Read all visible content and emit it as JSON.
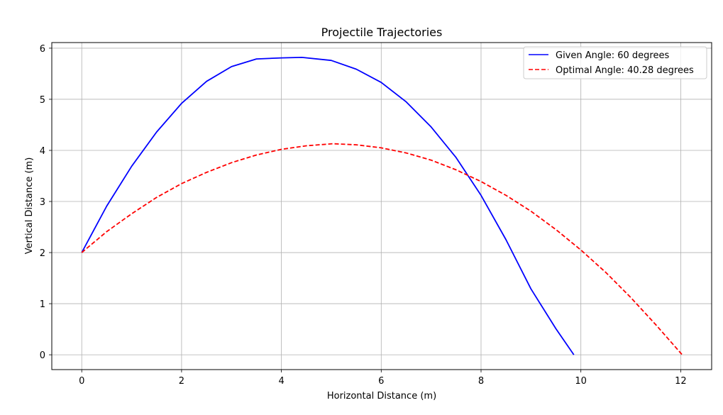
{
  "chart_data": {
    "type": "line",
    "title": "Projectile Trajectories",
    "xlabel": "Horizontal Distance (m)",
    "ylabel": "Vertical Distance (m)",
    "xlim": [
      -0.6,
      12.62
    ],
    "ylim": [
      -0.29,
      6.11
    ],
    "x_ticks": [
      0,
      2,
      4,
      6,
      8,
      10,
      12
    ],
    "y_ticks": [
      0,
      1,
      2,
      3,
      4,
      5,
      6
    ],
    "grid": true,
    "legend_position": "top-right",
    "series": [
      {
        "name": "Given Angle: 60 degrees",
        "color": "#0000ff",
        "style": "solid",
        "x": [
          0,
          0.5,
          1.0,
          1.5,
          2.0,
          2.5,
          3.0,
          3.5,
          4.0,
          4.41,
          5.0,
          5.5,
          6.0,
          6.5,
          7.0,
          7.5,
          8.0,
          8.5,
          9.0,
          9.5,
          9.86
        ],
        "y": [
          2.0,
          2.91,
          3.69,
          4.36,
          4.92,
          5.35,
          5.64,
          5.79,
          5.81,
          5.82,
          5.76,
          5.59,
          5.33,
          4.95,
          4.46,
          3.86,
          3.12,
          2.25,
          1.29,
          0.51,
          0.0
        ]
      },
      {
        "name": "Optimal Angle: 40.28 degrees",
        "color": "#ff0000",
        "style": "dashed",
        "x": [
          0,
          0.5,
          1.0,
          1.5,
          2.0,
          2.5,
          3.0,
          3.5,
          4.0,
          4.5,
          5.03,
          5.5,
          6.0,
          6.5,
          7.0,
          7.5,
          8.0,
          8.5,
          9.0,
          9.5,
          10.0,
          10.5,
          11.0,
          11.5,
          12.03
        ],
        "y": [
          2.0,
          2.41,
          2.76,
          3.08,
          3.35,
          3.57,
          3.76,
          3.91,
          4.02,
          4.09,
          4.13,
          4.11,
          4.05,
          3.95,
          3.81,
          3.62,
          3.39,
          3.12,
          2.81,
          2.45,
          2.05,
          1.61,
          1.12,
          0.59,
          0.0
        ]
      }
    ]
  }
}
